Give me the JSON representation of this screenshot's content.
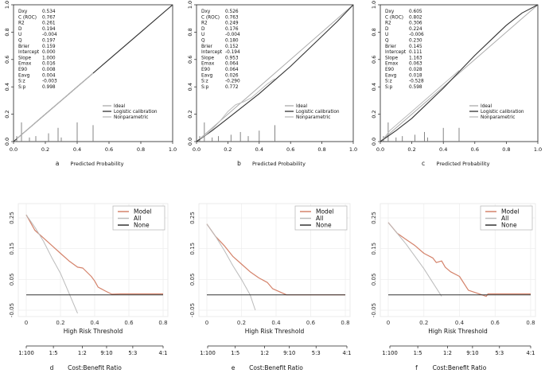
{
  "chart_data": [
    {
      "type": "line",
      "panel": "a",
      "title": "",
      "xlabel": "Predicted Probability",
      "ylabel": "",
      "xlim": [
        0,
        1
      ],
      "ylim": [
        0,
        1
      ],
      "xticks": [
        "0.0",
        "0.2",
        "0.4",
        "0.6",
        "0.8",
        "1.0"
      ],
      "yticks": [
        "0.0",
        "0.2",
        "0.4",
        "0.6",
        "0.8",
        "1.0"
      ],
      "stats": [
        {
          "name": "Dxy",
          "value": "0.534"
        },
        {
          "name": "C (ROC)",
          "value": "0.767"
        },
        {
          "name": "R2",
          "value": "0.261"
        },
        {
          "name": "D",
          "value": "0.194"
        },
        {
          "name": "U",
          "value": "-0.004"
        },
        {
          "name": "Q",
          "value": "0.197"
        },
        {
          "name": "Brier",
          "value": "0.159"
        },
        {
          "name": "Intercept",
          "value": "0.000"
        },
        {
          "name": "Slope",
          "value": "1.000"
        },
        {
          "name": "Emax",
          "value": "0.016"
        },
        {
          "name": "E90",
          "value": "0.008"
        },
        {
          "name": "Eavg",
          "value": "0.004"
        },
        {
          "name": "S:z",
          "value": "-0.003"
        },
        {
          "name": "S:p",
          "value": "0.998"
        }
      ],
      "legend": [
        "Ideal",
        "Logistic calibration",
        "Nonparametric"
      ],
      "series": [
        {
          "name": "Ideal",
          "x": [
            0,
            1
          ],
          "y": [
            0,
            1
          ]
        },
        {
          "name": "Logistic calibration",
          "x": [
            0,
            0.2,
            0.4,
            0.6,
            0.8,
            1.0
          ],
          "y": [
            0,
            0.2,
            0.4,
            0.6,
            0.8,
            1.0
          ]
        },
        {
          "name": "Nonparametric",
          "x": [
            0.02,
            0.06,
            0.1,
            0.15,
            0.2,
            0.25,
            0.3,
            0.35,
            0.4,
            0.45,
            0.5
          ],
          "y": [
            0.02,
            0.06,
            0.1,
            0.15,
            0.2,
            0.25,
            0.3,
            0.35,
            0.4,
            0.45,
            0.5
          ]
        }
      ],
      "rug": [
        {
          "x": 0.02,
          "h": 0.04
        },
        {
          "x": 0.05,
          "h": 0.14
        },
        {
          "x": 0.1,
          "h": 0.03
        },
        {
          "x": 0.14,
          "h": 0.04
        },
        {
          "x": 0.22,
          "h": 0.06
        },
        {
          "x": 0.28,
          "h": 0.1
        },
        {
          "x": 0.3,
          "h": 0.03
        },
        {
          "x": 0.4,
          "h": 0.14
        },
        {
          "x": 0.5,
          "h": 0.12
        }
      ]
    },
    {
      "type": "line",
      "panel": "b",
      "title": "",
      "xlabel": "Predicted Probability",
      "ylabel": "",
      "xlim": [
        0,
        1
      ],
      "ylim": [
        0,
        1
      ],
      "xticks": [
        "0.0",
        "0.2",
        "0.4",
        "0.6",
        "0.8",
        "1.0"
      ],
      "yticks": [
        "0.0",
        "0.2",
        "0.4",
        "0.6",
        "0.8",
        "1.0"
      ],
      "stats": [
        {
          "name": "Dxy",
          "value": "0.526"
        },
        {
          "name": "C (ROC)",
          "value": "0.763"
        },
        {
          "name": "R2",
          "value": "0.249"
        },
        {
          "name": "D",
          "value": "0.176"
        },
        {
          "name": "U",
          "value": "-0.004"
        },
        {
          "name": "Q",
          "value": "0.180"
        },
        {
          "name": "Brier",
          "value": "0.152"
        },
        {
          "name": "Intercept",
          "value": "-0.194"
        },
        {
          "name": "Slope",
          "value": "0.953"
        },
        {
          "name": "Emax",
          "value": "0.064"
        },
        {
          "name": "E90",
          "value": "0.064"
        },
        {
          "name": "Eavg",
          "value": "0.026"
        },
        {
          "name": "S:z",
          "value": "-0.290"
        },
        {
          "name": "S:p",
          "value": "0.772"
        }
      ],
      "legend": [
        "Ideal",
        "Logistic calibration",
        "Nonparametric"
      ],
      "series": [
        {
          "name": "Ideal",
          "x": [
            0,
            1
          ],
          "y": [
            0,
            1
          ]
        },
        {
          "name": "Logistic calibration",
          "x": [
            0,
            0.1,
            0.2,
            0.3,
            0.4,
            0.5,
            0.6,
            0.7,
            0.8,
            0.9,
            1.0
          ],
          "y": [
            0,
            0.08,
            0.17,
            0.26,
            0.35,
            0.45,
            0.55,
            0.66,
            0.77,
            0.88,
            1.0
          ]
        },
        {
          "name": "Nonparametric",
          "x": [
            0.02,
            0.06,
            0.1,
            0.15,
            0.2,
            0.25,
            0.3,
            0.35,
            0.4,
            0.45,
            0.5
          ],
          "y": [
            0.02,
            0.05,
            0.09,
            0.15,
            0.22,
            0.27,
            0.29,
            0.32,
            0.37,
            0.42,
            0.46
          ]
        }
      ],
      "rug": [
        {
          "x": 0.02,
          "h": 0.04
        },
        {
          "x": 0.05,
          "h": 0.14
        },
        {
          "x": 0.1,
          "h": 0.03
        },
        {
          "x": 0.14,
          "h": 0.04
        },
        {
          "x": 0.22,
          "h": 0.05
        },
        {
          "x": 0.28,
          "h": 0.07
        },
        {
          "x": 0.33,
          "h": 0.04
        },
        {
          "x": 0.4,
          "h": 0.08
        },
        {
          "x": 0.5,
          "h": 0.12
        }
      ]
    },
    {
      "type": "line",
      "panel": "c",
      "title": "",
      "xlabel": "Predicted Probability",
      "ylabel": "",
      "xlim": [
        0,
        1
      ],
      "ylim": [
        0,
        1
      ],
      "xticks": [
        "0.0",
        "0.2",
        "0.4",
        "0.6",
        "0.8",
        "1.0"
      ],
      "yticks": [
        "0.0",
        "0.2",
        "0.4",
        "0.6",
        "0.8",
        "1.0"
      ],
      "stats": [
        {
          "name": "Dxy",
          "value": "0.605"
        },
        {
          "name": "C (ROC)",
          "value": "0.802"
        },
        {
          "name": "R2",
          "value": "0.306"
        },
        {
          "name": "D",
          "value": "0.224"
        },
        {
          "name": "U",
          "value": "-0.006"
        },
        {
          "name": "Q",
          "value": "0.230"
        },
        {
          "name": "Brier",
          "value": "0.145"
        },
        {
          "name": "Intercept",
          "value": "0.111"
        },
        {
          "name": "Slope",
          "value": "1.163"
        },
        {
          "name": "Emax",
          "value": "0.063"
        },
        {
          "name": "E90",
          "value": "0.028"
        },
        {
          "name": "Eavg",
          "value": "0.018"
        },
        {
          "name": "S:z",
          "value": "-0.528"
        },
        {
          "name": "S:p",
          "value": "0.598"
        }
      ],
      "legend": [
        "Ideal",
        "Logistic calibration",
        "Nonparametric"
      ],
      "series": [
        {
          "name": "Ideal",
          "x": [
            0,
            1
          ],
          "y": [
            0,
            1
          ]
        },
        {
          "name": "Logistic calibration",
          "x": [
            0,
            0.1,
            0.2,
            0.3,
            0.4,
            0.5,
            0.6,
            0.7,
            0.8,
            0.9,
            1.0
          ],
          "y": [
            0,
            0.08,
            0.17,
            0.28,
            0.39,
            0.51,
            0.63,
            0.74,
            0.85,
            0.94,
            1.0
          ]
        },
        {
          "name": "Nonparametric",
          "x": [
            0.02,
            0.06,
            0.1,
            0.15,
            0.2,
            0.25,
            0.3,
            0.35,
            0.4,
            0.45,
            0.5
          ],
          "y": [
            0.02,
            0.08,
            0.12,
            0.17,
            0.22,
            0.27,
            0.32,
            0.37,
            0.42,
            0.47,
            0.52
          ]
        }
      ],
      "rug": [
        {
          "x": 0.02,
          "h": 0.04
        },
        {
          "x": 0.05,
          "h": 0.14
        },
        {
          "x": 0.1,
          "h": 0.03
        },
        {
          "x": 0.14,
          "h": 0.04
        },
        {
          "x": 0.22,
          "h": 0.05
        },
        {
          "x": 0.28,
          "h": 0.07
        },
        {
          "x": 0.3,
          "h": 0.03
        },
        {
          "x": 0.4,
          "h": 0.1
        },
        {
          "x": 0.5,
          "h": 0.1
        }
      ]
    },
    {
      "type": "line",
      "panel": "d",
      "title": "",
      "xlabel": "High Risk Threshold",
      "x2label": "Cost:Benefit Ratio",
      "ylabel": "",
      "xlim": [
        0,
        0.8
      ],
      "ylim": [
        -0.05,
        0.25
      ],
      "xticks": [
        "0",
        "0.2",
        "0.4",
        "0.6",
        "0.8"
      ],
      "yticks": [
        "-0.05",
        "0.05",
        "0.15",
        "0.25"
      ],
      "x2ticks": [
        "1:100",
        "1:5",
        "1:2",
        "9:10",
        "5:3",
        "4:1"
      ],
      "legend": [
        "Model",
        "All",
        "None"
      ],
      "series": [
        {
          "name": "Model",
          "x": [
            0,
            0.05,
            0.1,
            0.15,
            0.2,
            0.25,
            0.3,
            0.33,
            0.38,
            0.4,
            0.42,
            0.46,
            0.5,
            0.55,
            0.6,
            0.8
          ],
          "y": [
            0.26,
            0.21,
            0.185,
            0.16,
            0.135,
            0.11,
            0.09,
            0.087,
            0.06,
            0.045,
            0.025,
            0.013,
            0.002,
            0.003,
            0.003,
            0.003
          ]
        },
        {
          "name": "All",
          "x": [
            0,
            0.05,
            0.1,
            0.15,
            0.2,
            0.25,
            0.3
          ],
          "y": [
            0.26,
            0.22,
            0.175,
            0.12,
            0.07,
            0.005,
            -0.06
          ]
        },
        {
          "name": "None",
          "x": [
            0,
            0.8
          ],
          "y": [
            0,
            0
          ]
        }
      ]
    },
    {
      "type": "line",
      "panel": "e",
      "title": "",
      "xlabel": "High Risk Threshold",
      "x2label": "Cost:Benefit Ratio",
      "ylabel": "",
      "xlim": [
        0,
        0.8
      ],
      "ylim": [
        -0.05,
        0.25
      ],
      "xticks": [
        "0",
        "0.2",
        "0.4",
        "0.6",
        "0.8"
      ],
      "yticks": [
        "-0.05",
        "0.05",
        "0.15",
        "0.25"
      ],
      "x2ticks": [
        "1:100",
        "1:5",
        "1:2",
        "9:10",
        "5:3",
        "4:1"
      ],
      "legend": [
        "Model",
        "All",
        "None"
      ],
      "series": [
        {
          "name": "Model",
          "x": [
            0,
            0.05,
            0.1,
            0.15,
            0.2,
            0.25,
            0.3,
            0.35,
            0.38,
            0.42,
            0.46,
            0.8
          ],
          "y": [
            0.23,
            0.19,
            0.16,
            0.125,
            0.1,
            0.075,
            0.055,
            0.04,
            0.02,
            0.01,
            0.0,
            0.0
          ]
        },
        {
          "name": "All",
          "x": [
            0,
            0.05,
            0.1,
            0.15,
            0.2,
            0.25,
            0.28
          ],
          "y": [
            0.23,
            0.19,
            0.145,
            0.095,
            0.05,
            0.0,
            -0.05
          ]
        },
        {
          "name": "None",
          "x": [
            0,
            0.8
          ],
          "y": [
            0,
            0
          ]
        }
      ]
    },
    {
      "type": "line",
      "panel": "f",
      "title": "",
      "xlabel": "High Risk Threshold",
      "x2label": "Cost:Benefit Ratio",
      "ylabel": "",
      "xlim": [
        0,
        0.8
      ],
      "ylim": [
        -0.05,
        0.25
      ],
      "xticks": [
        "0",
        "0.2",
        "0.4",
        "0.6",
        "0.8"
      ],
      "yticks": [
        "-0.05",
        "0.05",
        "0.15",
        "0.25"
      ],
      "x2ticks": [
        "1:100",
        "1:5",
        "1:2",
        "9:10",
        "5:3",
        "4:1"
      ],
      "legend": [
        "Model",
        "All",
        "None"
      ],
      "series": [
        {
          "name": "Model",
          "x": [
            0,
            0.05,
            0.1,
            0.15,
            0.2,
            0.25,
            0.27,
            0.3,
            0.32,
            0.35,
            0.4,
            0.45,
            0.5,
            0.55,
            0.56,
            0.8
          ],
          "y": [
            0.235,
            0.2,
            0.18,
            0.16,
            0.135,
            0.12,
            0.105,
            0.11,
            0.09,
            0.075,
            0.06,
            0.015,
            0.005,
            -0.005,
            0.003,
            0.003
          ]
        },
        {
          "name": "All",
          "x": [
            0,
            0.05,
            0.1,
            0.15,
            0.2,
            0.25,
            0.3
          ],
          "y": [
            0.235,
            0.2,
            0.165,
            0.125,
            0.085,
            0.04,
            -0.005
          ]
        },
        {
          "name": "None",
          "x": [
            0,
            0.8
          ],
          "y": [
            0,
            0
          ]
        }
      ]
    }
  ]
}
